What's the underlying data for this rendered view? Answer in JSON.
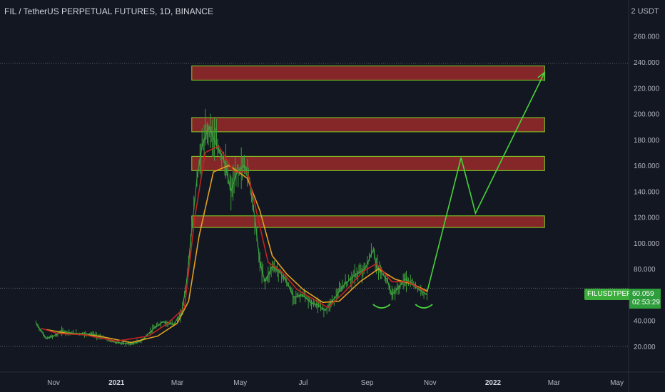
{
  "header": {
    "title": "FIL / TetherUS PERPETUAL FUTURES, 1D, BINANCE",
    "scale_mode": "2 USDT"
  },
  "price_tag": {
    "symbol": "FILUSDTPERP",
    "price": "60.059",
    "countdown": "02:53:29"
  },
  "colors": {
    "background": "#131722",
    "zone_fill": "#9a2a2a",
    "zone_border": "#7ed321",
    "projection": "#46d43a",
    "ma_fast": "#c2241f",
    "ma_slow": "#e0a020",
    "candles": "#3f9a3b"
  },
  "chart_data": {
    "type": "line",
    "y_axis": {
      "min": 10,
      "max": 270,
      "ticks": [
        "20.000",
        "40.000",
        "60.000",
        "80.000",
        "100.000",
        "120.000",
        "140.000",
        "160.000",
        "180.000",
        "200.000",
        "220.000",
        "240.000",
        "260.000"
      ],
      "tick_values": [
        20,
        40,
        60,
        80,
        100,
        120,
        140,
        160,
        180,
        200,
        220,
        240,
        260
      ]
    },
    "x_axis": {
      "ticks": [
        {
          "label": "Nov",
          "date": "2020-11-01",
          "year": false
        },
        {
          "label": "2021",
          "date": "2021-01-01",
          "year": true
        },
        {
          "label": "Mar",
          "date": "2021-03-01",
          "year": false
        },
        {
          "label": "May",
          "date": "2021-05-01",
          "year": false
        },
        {
          "label": "Jul",
          "date": "2021-07-01",
          "year": false
        },
        {
          "label": "Sep",
          "date": "2021-09-01",
          "year": false
        },
        {
          "label": "Nov",
          "date": "2021-11-01",
          "year": false
        },
        {
          "label": "2022",
          "date": "2022-01-01",
          "year": true
        },
        {
          "label": "Mar",
          "date": "2022-03-01",
          "year": false
        },
        {
          "label": "May",
          "date": "2022-05-01",
          "year": false
        }
      ]
    },
    "grid": false,
    "horizontal_lines": [
      20,
      239,
      65
    ],
    "price_series": {
      "name": "",
      "points": [
        [
          "2020-10-15",
          38
        ],
        [
          "2020-10-20",
          32
        ],
        [
          "2020-10-25",
          26
        ],
        [
          "2020-11-01",
          28
        ],
        [
          "2020-11-10",
          32
        ],
        [
          "2020-11-20",
          30
        ],
        [
          "2020-12-01",
          30
        ],
        [
          "2020-12-10",
          29
        ],
        [
          "2020-12-20",
          26
        ],
        [
          "2021-01-01",
          23
        ],
        [
          "2021-01-15",
          22
        ],
        [
          "2021-01-25",
          24
        ],
        [
          "2021-02-05",
          33
        ],
        [
          "2021-02-15",
          39
        ],
        [
          "2021-02-25",
          37
        ],
        [
          "2021-03-05",
          45
        ],
        [
          "2021-03-10",
          70
        ],
        [
          "2021-03-15",
          110
        ],
        [
          "2021-03-20",
          150
        ],
        [
          "2021-03-25",
          175
        ],
        [
          "2021-04-01",
          190
        ],
        [
          "2021-04-08",
          175
        ],
        [
          "2021-04-15",
          165
        ],
        [
          "2021-04-22",
          140
        ],
        [
          "2021-04-28",
          155
        ],
        [
          "2021-05-05",
          160
        ],
        [
          "2021-05-10",
          150
        ],
        [
          "2021-05-15",
          120
        ],
        [
          "2021-05-20",
          85
        ],
        [
          "2021-05-25",
          70
        ],
        [
          "2021-06-01",
          82
        ],
        [
          "2021-06-08",
          78
        ],
        [
          "2021-06-15",
          70
        ],
        [
          "2021-06-22",
          58
        ],
        [
          "2021-06-30",
          60
        ],
        [
          "2021-07-08",
          54
        ],
        [
          "2021-07-15",
          52
        ],
        [
          "2021-07-22",
          48
        ],
        [
          "2021-08-01",
          58
        ],
        [
          "2021-08-10",
          68
        ],
        [
          "2021-08-20",
          75
        ],
        [
          "2021-08-30",
          80
        ],
        [
          "2021-09-07",
          95
        ],
        [
          "2021-09-10",
          82
        ],
        [
          "2021-09-20",
          72
        ],
        [
          "2021-09-25",
          60
        ],
        [
          "2021-10-01",
          65
        ],
        [
          "2021-10-08",
          72
        ],
        [
          "2021-10-15",
          68
        ],
        [
          "2021-10-22",
          64
        ],
        [
          "2021-10-29",
          60
        ]
      ]
    },
    "moving_average_fast": {
      "name": "",
      "points": [
        [
          "2020-10-20",
          34
        ],
        [
          "2020-11-05",
          30
        ],
        [
          "2020-12-01",
          29
        ],
        [
          "2021-01-01",
          24
        ],
        [
          "2021-02-01",
          28
        ],
        [
          "2021-02-20",
          38
        ],
        [
          "2021-03-08",
          50
        ],
        [
          "2021-03-18",
          120
        ],
        [
          "2021-03-28",
          170
        ],
        [
          "2021-04-10",
          175
        ],
        [
          "2021-04-25",
          155
        ],
        [
          "2021-05-08",
          155
        ],
        [
          "2021-05-18",
          120
        ],
        [
          "2021-05-28",
          85
        ],
        [
          "2021-06-10",
          78
        ],
        [
          "2021-06-25",
          64
        ],
        [
          "2021-07-10",
          57
        ],
        [
          "2021-07-25",
          50
        ],
        [
          "2021-08-10",
          62
        ],
        [
          "2021-08-28",
          78
        ],
        [
          "2021-09-10",
          84
        ],
        [
          "2021-09-25",
          70
        ],
        [
          "2021-10-10",
          70
        ],
        [
          "2021-10-29",
          62
        ]
      ]
    },
    "moving_average_slow": {
      "name": "",
      "points": [
        [
          "2020-10-25",
          33
        ],
        [
          "2020-11-15",
          30
        ],
        [
          "2020-12-15",
          28
        ],
        [
          "2021-01-15",
          23
        ],
        [
          "2021-02-10",
          28
        ],
        [
          "2021-03-01",
          38
        ],
        [
          "2021-03-12",
          55
        ],
        [
          "2021-03-22",
          105
        ],
        [
          "2021-04-05",
          155
        ],
        [
          "2021-04-20",
          160
        ],
        [
          "2021-05-08",
          150
        ],
        [
          "2021-05-20",
          125
        ],
        [
          "2021-06-01",
          90
        ],
        [
          "2021-06-15",
          76
        ],
        [
          "2021-07-01",
          64
        ],
        [
          "2021-07-20",
          54
        ],
        [
          "2021-08-05",
          55
        ],
        [
          "2021-08-25",
          70
        ],
        [
          "2021-09-12",
          80
        ],
        [
          "2021-09-28",
          72
        ],
        [
          "2021-10-15",
          68
        ],
        [
          "2021-10-29",
          63
        ]
      ]
    },
    "resistance_zones": [
      {
        "from": "2021-03-15",
        "to": "2022-02-20",
        "low": 226,
        "high": 237
      },
      {
        "from": "2021-03-15",
        "to": "2022-02-20",
        "low": 186,
        "high": 197
      },
      {
        "from": "2021-03-15",
        "to": "2022-02-20",
        "low": 156,
        "high": 167
      },
      {
        "from": "2021-03-15",
        "to": "2022-02-20",
        "low": 112,
        "high": 121
      }
    ],
    "projection_path": [
      [
        "2021-10-29",
        62
      ],
      [
        "2021-12-01",
        166
      ],
      [
        "2021-12-15",
        123
      ],
      [
        "2022-02-20",
        232
      ]
    ],
    "pattern_arcs": [
      {
        "center": "2021-09-15",
        "y": 58
      },
      {
        "center": "2021-10-26",
        "y": 58
      }
    ]
  }
}
